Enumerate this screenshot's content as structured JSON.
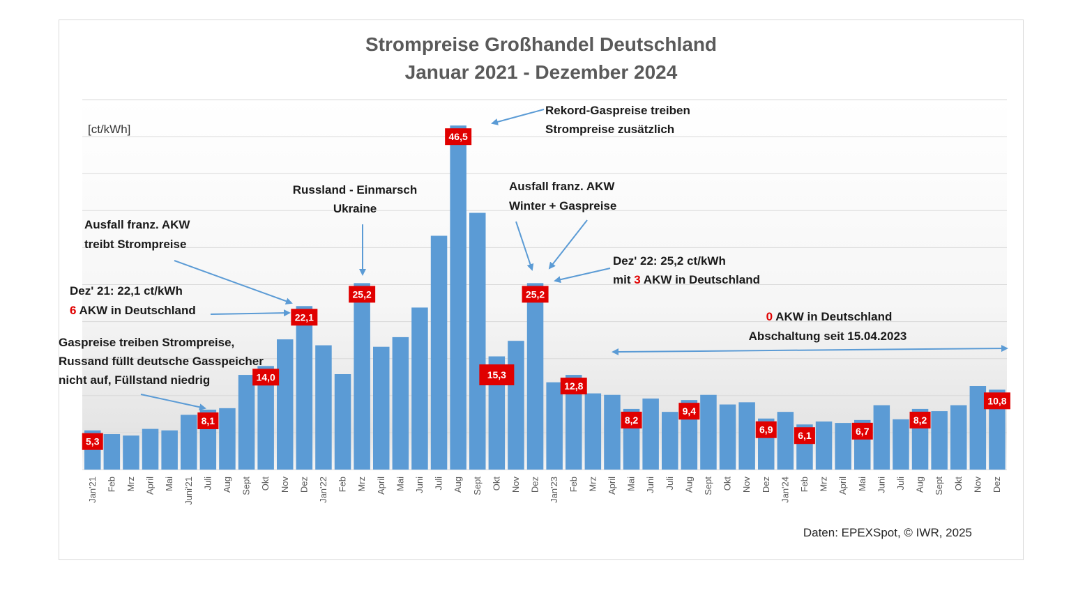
{
  "chart_data": {
    "type": "bar",
    "title": [
      "Strompreise Großhandel Deutschland",
      "Januar 2021 - Dezember 2024"
    ],
    "ylabel": "[ct/kWh]",
    "ylim": [
      0,
      50
    ],
    "grid": true,
    "categories": [
      "Jan'21",
      "Feb",
      "Mrz",
      "April",
      "Mai",
      "Juni'21",
      "Juli",
      "Aug",
      "Sept",
      "Okt",
      "Nov",
      "Dez",
      "Jan'22",
      "Feb",
      "Mrz",
      "April",
      "Mai",
      "Juni",
      "Juli",
      "Aug",
      "Sept",
      "Okt",
      "Nov",
      "Dez",
      "Jan'23",
      "Feb",
      "Mrz",
      "April",
      "Mai",
      "Juni",
      "Juli",
      "Aug",
      "Sept",
      "Okt",
      "Nov",
      "Dez",
      "Jan'24",
      "Feb",
      "Mrz",
      "April",
      "Mai",
      "Juni",
      "Juli",
      "Aug",
      "Sept",
      "Okt",
      "Nov",
      "Dez"
    ],
    "values": [
      5.3,
      4.8,
      4.6,
      5.5,
      5.3,
      7.4,
      8.1,
      8.3,
      12.8,
      14.0,
      17.6,
      22.1,
      16.8,
      12.9,
      25.2,
      16.6,
      17.9,
      21.9,
      31.6,
      46.5,
      34.7,
      15.3,
      17.4,
      25.2,
      11.8,
      12.8,
      10.3,
      10.1,
      8.2,
      9.6,
      7.8,
      9.4,
      10.1,
      8.8,
      9.1,
      6.9,
      7.8,
      6.1,
      6.5,
      6.3,
      6.7,
      8.7,
      6.8,
      8.2,
      7.9,
      8.7,
      11.3,
      10.8
    ],
    "data_labels": [
      {
        "index": 0,
        "text": "5,3"
      },
      {
        "index": 6,
        "text": "8,1"
      },
      {
        "index": 9,
        "text": "14,0"
      },
      {
        "index": 11,
        "text": "22,1"
      },
      {
        "index": 14,
        "text": "25,2"
      },
      {
        "index": 19,
        "text": "46,5"
      },
      {
        "index": 21,
        "text": "15,3"
      },
      {
        "index": 23,
        "text": "25,2"
      },
      {
        "index": 25,
        "text": "12,8"
      },
      {
        "index": 28,
        "text": "8,2"
      },
      {
        "index": 31,
        "text": "9,4"
      },
      {
        "index": 35,
        "text": "6,9"
      },
      {
        "index": 37,
        "text": "6,1"
      },
      {
        "index": 40,
        "text": "6,7"
      },
      {
        "index": 43,
        "text": "8,2"
      },
      {
        "index": 47,
        "text": "10,8"
      }
    ],
    "colors": {
      "bar": "#5b9bd5",
      "label_bg": "#e00000",
      "arrow": "#5b9bd5",
      "highlight": "#e00000"
    }
  },
  "annotations": {
    "rekord": [
      "Rekord-Gaspreise treiben",
      "Strompreise zusätzlich"
    ],
    "russland": [
      "Russland - Einmarsch",
      "Ukraine"
    ],
    "ausfall1": [
      "Ausfall franz. AKW",
      "treibt Strompreise"
    ],
    "ausfall2": [
      "Ausfall franz. AKW",
      "Winter + Gaspreise"
    ],
    "dez21": {
      "line1": "Dez' 21: 22,1 ct/kWh",
      "num": "6",
      "line2": " AKW in Deutschland"
    },
    "dez22": {
      "line1": "Dez' 22: 25,2 ct/kWh",
      "pre": "mit ",
      "num": "3",
      "line2": " AKW in Deutschland"
    },
    "gas": [
      "Gaspreise treiben Strompreise,",
      "Russand füllt deutsche Gasspeicher",
      "nicht auf, Füllstand niedrig"
    ],
    "zero": {
      "num": "0",
      "line1": " AKW in Deutschland",
      "line2": "Abschaltung seit 15.04.2023"
    }
  },
  "source": "Daten: EPEXSpot, © IWR, 2025"
}
